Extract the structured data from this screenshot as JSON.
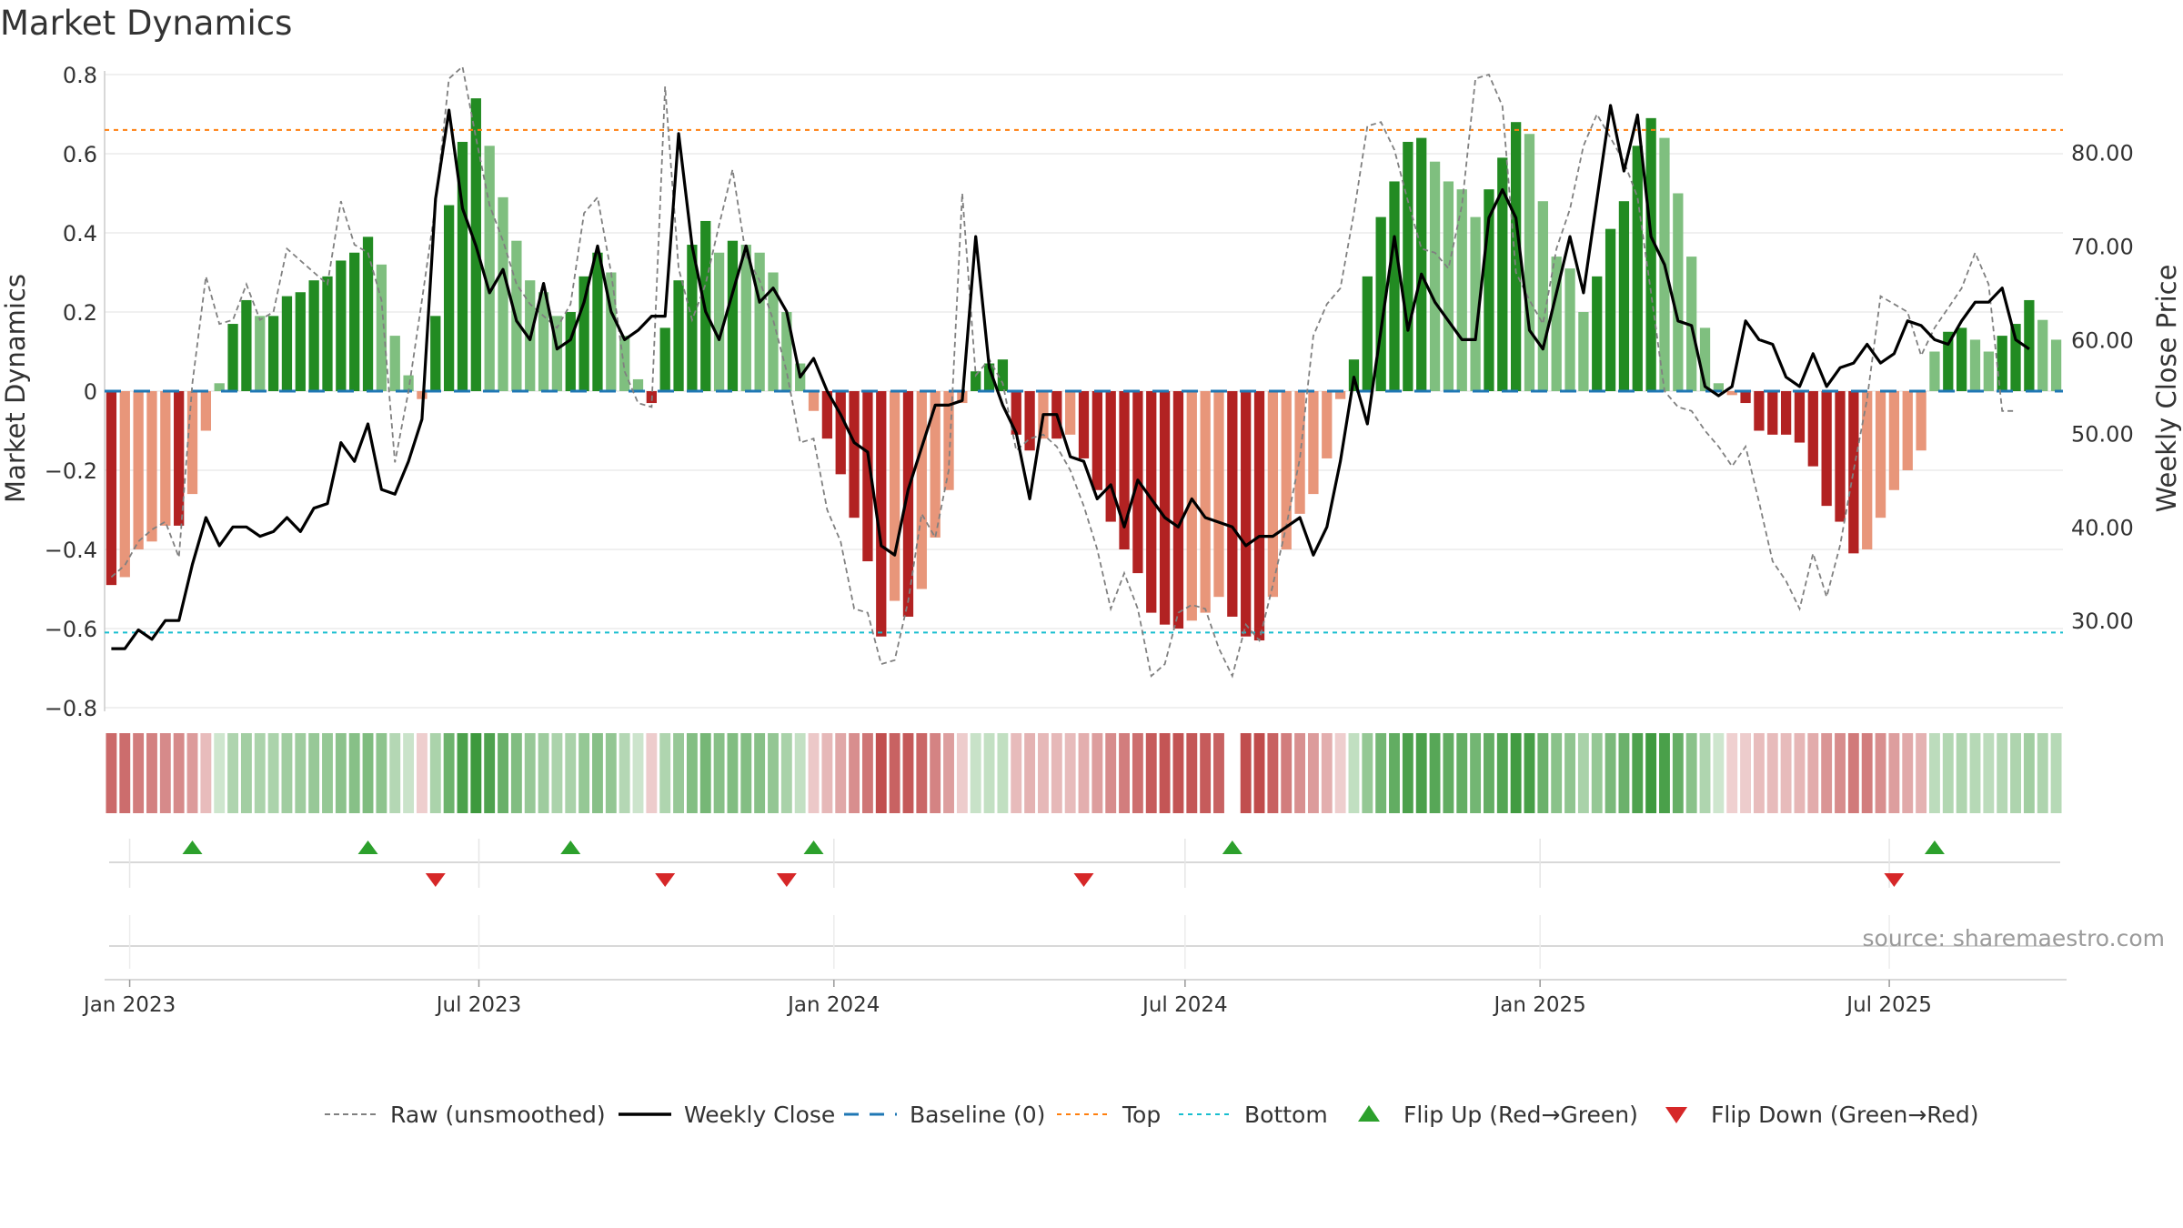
{
  "chart_data": {
    "type": "bar",
    "title": "Market Dynamics",
    "ylabel": "Market Dynamics",
    "y2label": "Weekly Close Price",
    "ylim": [
      -0.8,
      0.8
    ],
    "y2lim": [
      20.7,
      88.3
    ],
    "yticks": [
      "0.8",
      "0.6",
      "0.4",
      "0.2",
      "0",
      "−0.2",
      "−0.4",
      "−0.6",
      "−0.8"
    ],
    "y2ticks": [
      "80.00",
      "70.00",
      "60.00",
      "50.00",
      "40.00",
      "30.00"
    ],
    "x_start": "2022-12-19",
    "xticks": [
      {
        "label": "Jan 2023",
        "date": "2023-01-01"
      },
      {
        "label": "Jul 2023",
        "date": "2023-07-01"
      },
      {
        "label": "Jan 2024",
        "date": "2024-01-01"
      },
      {
        "label": "Jul 2024",
        "date": "2024-07-01"
      },
      {
        "label": "Jan 2025",
        "date": "2025-01-01"
      },
      {
        "label": "Jul 2025",
        "date": "2025-07-01"
      }
    ],
    "top": 0.66,
    "bottom": -0.61,
    "baseline": 0,
    "bars": [
      -0.49,
      -0.47,
      -0.4,
      -0.38,
      -0.34,
      -0.34,
      -0.26,
      -0.1,
      0.02,
      0.17,
      0.23,
      0.19,
      0.19,
      0.24,
      0.25,
      0.28,
      0.29,
      0.33,
      0.35,
      0.39,
      0.32,
      0.14,
      0.04,
      -0.02,
      0.19,
      0.47,
      0.63,
      0.74,
      0.62,
      0.49,
      0.38,
      0.28,
      0.25,
      0.19,
      0.2,
      0.29,
      0.35,
      0.3,
      0.14,
      0.03,
      -0.03,
      0.16,
      0.28,
      0.37,
      0.43,
      0.35,
      0.38,
      0.37,
      0.35,
      0.3,
      0.2,
      0.07,
      -0.05,
      -0.12,
      -0.21,
      -0.32,
      -0.43,
      -0.62,
      -0.53,
      -0.57,
      -0.5,
      -0.37,
      -0.25,
      -0.03,
      0.05,
      0.07,
      0.08,
      -0.11,
      -0.15,
      -0.12,
      -0.12,
      -0.11,
      -0.17,
      -0.25,
      -0.33,
      -0.4,
      -0.46,
      -0.56,
      -0.59,
      -0.6,
      -0.58,
      -0.56,
      -0.52,
      -0.57,
      -0.62,
      -0.63,
      -0.52,
      -0.4,
      -0.31,
      -0.26,
      -0.17,
      -0.02,
      0.08,
      0.29,
      0.44,
      0.53,
      0.63,
      0.64,
      0.58,
      0.53,
      0.51,
      0.44,
      0.51,
      0.59,
      0.68,
      0.65,
      0.48,
      0.34,
      0.31,
      0.2,
      0.29,
      0.41,
      0.48,
      0.62,
      0.69,
      0.64,
      0.5,
      0.34,
      0.16,
      0.02,
      -0.01,
      -0.03,
      -0.1,
      -0.11,
      -0.11,
      -0.13,
      -0.19,
      -0.29,
      -0.33,
      -0.41,
      -0.4,
      -0.32,
      -0.25,
      -0.2,
      -0.15,
      0.1,
      0.15,
      0.16,
      0.13,
      0.1,
      0.14,
      0.17,
      0.23,
      0.18,
      0.13
    ],
    "raw_values": [
      -0.47,
      -0.44,
      -0.38,
      -0.35,
      -0.33,
      -0.42,
      0.02,
      0.29,
      0.17,
      0.18,
      0.27,
      0.18,
      0.2,
      0.36,
      0.33,
      0.3,
      0.27,
      0.48,
      0.37,
      0.35,
      0.23,
      -0.18,
      0.0,
      0.23,
      0.47,
      0.79,
      0.82,
      0.64,
      0.47,
      0.38,
      0.27,
      0.22,
      0.19,
      0.16,
      0.22,
      0.45,
      0.49,
      0.3,
      0.05,
      -0.03,
      -0.04,
      0.77,
      0.31,
      0.18,
      0.27,
      0.42,
      0.56,
      0.34,
      0.28,
      0.18,
      0.05,
      -0.13,
      -0.12,
      -0.3,
      -0.38,
      -0.55,
      -0.56,
      -0.69,
      -0.68,
      -0.53,
      -0.31,
      -0.37,
      -0.2,
      0.5,
      0.04,
      0.08,
      0.02,
      -0.15,
      -0.12,
      -0.11,
      -0.14,
      -0.2,
      -0.29,
      -0.4,
      -0.55,
      -0.46,
      -0.55,
      -0.72,
      -0.69,
      -0.56,
      -0.54,
      -0.55,
      -0.65,
      -0.72,
      -0.59,
      -0.63,
      -0.49,
      -0.34,
      -0.17,
      0.14,
      0.22,
      0.26,
      0.45,
      0.67,
      0.68,
      0.61,
      0.48,
      0.36,
      0.35,
      0.31,
      0.47,
      0.79,
      0.8,
      0.72,
      0.3,
      0.23,
      0.17,
      0.36,
      0.46,
      0.62,
      0.7,
      0.64,
      0.58,
      0.49,
      0.25,
      0.0,
      -0.04,
      -0.05,
      -0.1,
      -0.14,
      -0.19,
      -0.14,
      -0.28,
      -0.43,
      -0.48,
      -0.55,
      -0.41,
      -0.52,
      -0.39,
      -0.2,
      -0.02,
      0.24,
      0.22,
      0.2,
      0.09,
      0.16,
      0.21,
      0.26,
      0.35,
      0.27,
      -0.05,
      -0.05
    ],
    "close_values": [
      27.0,
      27.0,
      29.0,
      28.0,
      30.0,
      30.0,
      36.0,
      41.0,
      38.0,
      40.0,
      40.0,
      39.0,
      39.5,
      41.0,
      39.5,
      42.0,
      42.5,
      49.0,
      47.0,
      51.0,
      44.0,
      43.5,
      47.0,
      51.5,
      75.0,
      84.5,
      74.0,
      70.0,
      65.0,
      67.5,
      62.0,
      60.0,
      66.0,
      59.0,
      60.0,
      64.0,
      70.0,
      63.0,
      60.0,
      61.0,
      62.5,
      62.5,
      82.0,
      70.0,
      63.0,
      60.0,
      65.0,
      70.0,
      64.0,
      65.5,
      63.0,
      56.0,
      58.0,
      54.5,
      52.0,
      49.0,
      48.0,
      38.0,
      37.0,
      44.0,
      48.5,
      53.0,
      53.0,
      53.5,
      71.0,
      57.0,
      53.0,
      50.0,
      43.0,
      52.0,
      52.0,
      47.5,
      47.0,
      43.0,
      44.5,
      40.0,
      45.0,
      43.0,
      41.0,
      40.0,
      43.0,
      41.0,
      40.5,
      40.0,
      38.0,
      39.0,
      39.0,
      40.0,
      41.0,
      37.0,
      40.0,
      47.0,
      56.0,
      51.0,
      61.0,
      71.0,
      61.0,
      67.0,
      64.0,
      62.0,
      60.0,
      60.0,
      73.0,
      76.0,
      73.0,
      61.0,
      59.0,
      65.0,
      71.0,
      65.0,
      75.0,
      85.0,
      78.0,
      84.0,
      71.0,
      68.0,
      62.0,
      61.5,
      55.0,
      54.0,
      55.0,
      62.0,
      60.0,
      59.5,
      56.0,
      55.0,
      58.5,
      55.0,
      57.0,
      57.5,
      59.5,
      57.5,
      58.5,
      62.0,
      61.5,
      60.0,
      59.5,
      62.0,
      64.0,
      64.0,
      65.5,
      60.0,
      59.0
    ],
    "strip_gaps": [
      83
    ],
    "flips_up": [
      6,
      19,
      34,
      52,
      83,
      135
    ],
    "flips_down": [
      24,
      41,
      50,
      72,
      132
    ],
    "legend": [
      "Raw (unsmoothed)",
      "Weekly Close",
      "Baseline (0)",
      "Top",
      "Bottom",
      "Flip Up (Red→Green)",
      "Flip Down (Green→Red)"
    ],
    "source": "source: sharemaestro.com",
    "colors": {
      "strong_green": "#228b22",
      "light_green": "#7fbf7f",
      "strong_red": "#b22222",
      "light_red": "#e8967a",
      "raw": "#808080",
      "close": "#000000",
      "baseline": "#1f77b4",
      "top": "#ff7f0e",
      "bottom": "#17becf",
      "flip_up": "#2ca02c",
      "flip_down": "#d62728"
    }
  }
}
